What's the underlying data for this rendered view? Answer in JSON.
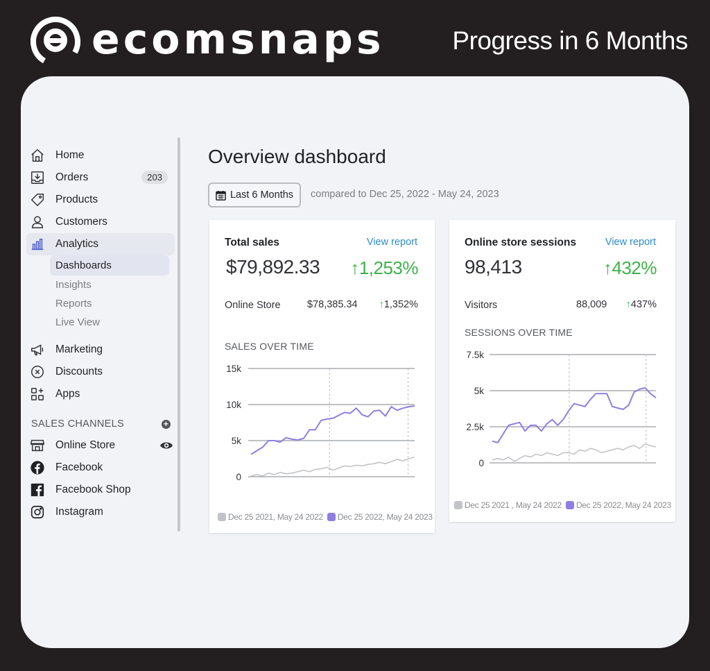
{
  "brand": {
    "name": "ecomsnaps",
    "tagline": "Progress in 6 Months"
  },
  "colors": {
    "accent_purple": "#8f7ee0",
    "gray_series": "#c2c3c6",
    "positive": "#3db24a",
    "link": "#2c8cc9"
  },
  "sidebar": {
    "items": [
      {
        "label": "Home",
        "icon": "home-icon"
      },
      {
        "label": "Orders",
        "icon": "orders-icon",
        "badge": "203"
      },
      {
        "label": "Products",
        "icon": "tag-icon"
      },
      {
        "label": "Customers",
        "icon": "person-icon"
      },
      {
        "label": "Analytics",
        "icon": "bar-chart-icon"
      }
    ],
    "analytics_sub": [
      "Dashboards",
      "Insights",
      "Reports",
      "Live View"
    ],
    "items2": [
      {
        "label": "Marketing",
        "icon": "megaphone-icon"
      },
      {
        "label": "Discounts",
        "icon": "discount-icon"
      },
      {
        "label": "Apps",
        "icon": "apps-icon"
      }
    ],
    "sales_channels_title": "SALES CHANNELS",
    "channels": [
      {
        "label": "Online Store",
        "icon": "store-icon"
      },
      {
        "label": "Facebook",
        "icon": "facebook-icon"
      },
      {
        "label": "Facebook Shop",
        "icon": "facebook-shop-icon"
      },
      {
        "label": "Instagram",
        "icon": "instagram-icon"
      }
    ]
  },
  "main": {
    "title": "Overview dashboard",
    "date_button": "Last 6 Months",
    "compared": "compared to Dec 25, 2022 - May 24, 2023"
  },
  "cards": [
    {
      "title": "Total sales",
      "view_report": "View report",
      "value": "$79,892.33",
      "change": "1,253%",
      "row_label": "Online Store",
      "row_value": "$78,385.34",
      "row_change": "1,352%",
      "chart_title": "SALES OVER TIME",
      "legend": [
        "Dec 25 2021, May 24 2022",
        "Dec 25 2022, May 24 2023"
      ]
    },
    {
      "title": "Online store sessions",
      "view_report": "View report",
      "value": "98,413",
      "change": "432%",
      "row_label": "Visitors",
      "row_value": "88,009",
      "row_change": "437%",
      "chart_title": "SESSIONS OVER TIME",
      "legend": [
        "Dec 25 2021 , May 24 2022",
        "Dec 25 2022, May 24 2023"
      ]
    }
  ],
  "chart_data": [
    {
      "type": "line",
      "title": "SALES OVER TIME",
      "ylim": [
        0,
        15000
      ],
      "yticks": [
        0,
        5000,
        10000,
        15000
      ],
      "ytick_labels": [
        "0",
        "5k",
        "10k",
        "15k"
      ],
      "grid": true,
      "legend_position": "bottom",
      "series": [
        {
          "name": "Dec 25 2022, May 24 2023",
          "color": "#8f7ee0",
          "values": [
            3100,
            3600,
            4100,
            5000,
            5000,
            4800,
            5400,
            5200,
            5100,
            5300,
            6500,
            6500,
            7800,
            8000,
            8100,
            8500,
            8900,
            8800,
            9500,
            8600,
            8300,
            9100,
            9200,
            8400,
            9700,
            9200,
            9500,
            9700,
            9800
          ]
        },
        {
          "name": "Dec 25 2021, May 24 2022",
          "color": "#c2c3c6",
          "values": [
            100,
            300,
            100,
            500,
            300,
            600,
            400,
            500,
            700,
            900,
            700,
            1000,
            1100,
            1300,
            900,
            1200,
            1500,
            1400,
            1600,
            1500,
            1700,
            1800,
            2000,
            1800,
            2100,
            2400,
            2200,
            2500,
            2700
          ]
        }
      ]
    },
    {
      "type": "line",
      "title": "SESSIONS OVER TIME",
      "ylim": [
        0,
        7500
      ],
      "yticks": [
        0,
        2500,
        5000,
        7500
      ],
      "ytick_labels": [
        "0",
        "2.5k",
        "5k",
        "7.5k"
      ],
      "grid": true,
      "legend_position": "bottom",
      "series": [
        {
          "name": "Dec 25 2022, May 24 2023",
          "color": "#8f7ee0",
          "values": [
            1500,
            1400,
            2000,
            2600,
            2700,
            2800,
            2200,
            2600,
            2600,
            2200,
            2700,
            3000,
            2600,
            3000,
            3600,
            4100,
            4000,
            3900,
            4400,
            4800,
            4800,
            4800,
            3900,
            3800,
            3700,
            4000,
            4900,
            5100,
            5200,
            4800,
            4500
          ]
        },
        {
          "name": "Dec 25 2021 , May 24 2022",
          "color": "#c2c3c6",
          "values": [
            200,
            300,
            200,
            400,
            100,
            300,
            500,
            400,
            600,
            500,
            700,
            600,
            500,
            700,
            700,
            600,
            900,
            800,
            1000,
            900,
            700,
            800,
            900,
            1000,
            900,
            1100,
            1200,
            1000,
            1300,
            1200,
            1100
          ]
        }
      ]
    }
  ]
}
